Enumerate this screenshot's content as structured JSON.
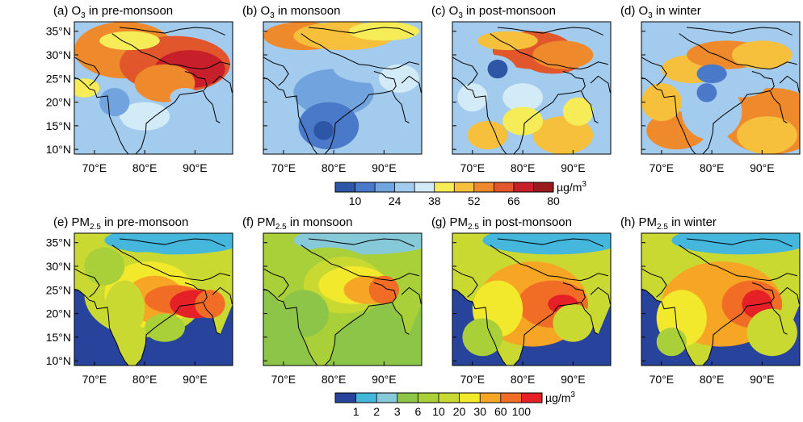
{
  "figure": {
    "x_ticks": [
      "70°E",
      "80°E",
      "90°E"
    ],
    "y_ticks": [
      "35°N",
      "30°N",
      "25°N",
      "20°N",
      "15°N",
      "10°N"
    ]
  },
  "rows": [
    {
      "species": "O3",
      "panels": [
        {
          "label": "(a) O",
          "sub": "3",
          "rest": " in pre-monsoon",
          "season": "pre-monsoon"
        },
        {
          "label": "(b) O",
          "sub": "3",
          "rest": " in monsoon",
          "season": "monsoon"
        },
        {
          "label": "(c) O",
          "sub": "3",
          "rest": " in post-monsoon",
          "season": "post-monsoon"
        },
        {
          "label": "(d) O",
          "sub": "3",
          "rest": " in winter",
          "season": "winter"
        }
      ],
      "colorbar": {
        "unit": "µg/m",
        "unit_sup": "3",
        "tick_labels": [
          "10",
          "24",
          "38",
          "52",
          "66",
          "80"
        ],
        "colors": [
          "#2e56a6",
          "#4a79c9",
          "#71a3de",
          "#a3cbed",
          "#d3eaf7",
          "#f6ec58",
          "#f6bf3c",
          "#ee8a2c",
          "#e1562a",
          "#c8202a",
          "#9b1a1e"
        ]
      }
    },
    {
      "species": "PM2.5",
      "panels": [
        {
          "label": "(e) PM",
          "sub": "2.5",
          "rest": " in pre-monsoon",
          "season": "pre-monsoon"
        },
        {
          "label": "(f) PM",
          "sub": "2.5",
          "rest": " in monsoon",
          "season": "monsoon"
        },
        {
          "label": "(g) PM",
          "sub": "2.5",
          "rest": " in post-monsoon",
          "season": "post-monsoon"
        },
        {
          "label": "(h) PM",
          "sub": "2.5",
          "rest": " in winter",
          "season": "winter"
        }
      ],
      "colorbar": {
        "unit": "µg/m",
        "unit_sup": "3",
        "tick_labels": [
          "1",
          "2",
          "3",
          "6",
          "10",
          "20",
          "30",
          "60",
          "100"
        ],
        "colors": [
          "#27439b",
          "#45b6dc",
          "#86c9d8",
          "#8dc549",
          "#a9cf39",
          "#cad832",
          "#f3e92c",
          "#f6a624",
          "#f16d25",
          "#e52027"
        ]
      }
    }
  ]
}
